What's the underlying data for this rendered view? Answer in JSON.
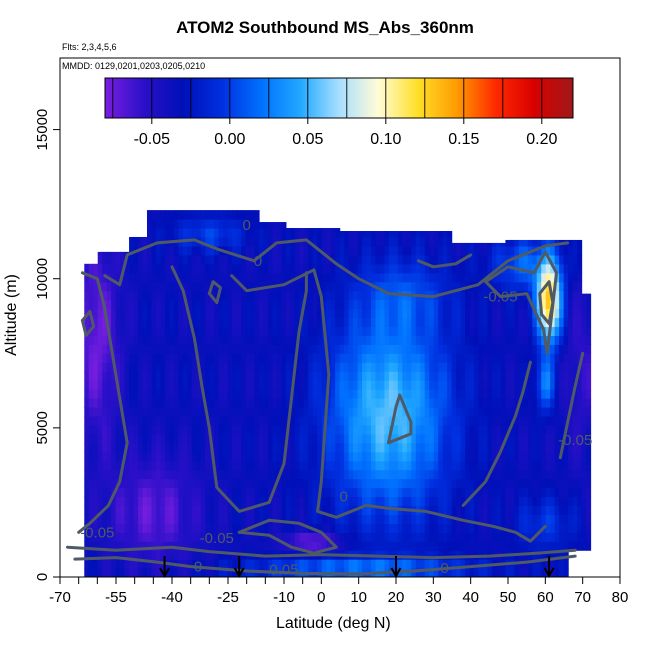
{
  "chart_data": {
    "type": "heatmap",
    "title": "ATOM2 Southbound MS_Abs_360nm",
    "notes": [
      "Flts: 2,3,4,5,6",
      "MMDD: 0129,0201,0203,0205,0210"
    ],
    "xlabel": "Latitude (deg N)",
    "ylabel": "Altitude (m)",
    "xlim": [
      -70,
      80
    ],
    "ylim": [
      0,
      17400
    ],
    "x_ticks": [
      -70,
      -55,
      -40,
      -25,
      -10,
      0,
      10,
      20,
      30,
      40,
      50,
      60,
      70,
      80
    ],
    "x_tick_labels": [
      "-70",
      "-55",
      "-40",
      "-25",
      "-10",
      "0",
      "10",
      "20",
      "30",
      "40",
      "50",
      "60",
      "70",
      "80"
    ],
    "x_minor_ticks": [
      -65,
      -60,
      -50,
      -45,
      -35,
      -30,
      -20,
      -15,
      -5
    ],
    "y_ticks": [
      0,
      5000,
      10000,
      15000
    ],
    "y_tick_labels": [
      "0",
      "5000",
      "10000",
      "15000"
    ],
    "colorbar": {
      "range": [
        -0.08,
        0.22
      ],
      "ticks": [
        -0.05,
        0.0,
        0.05,
        0.1,
        0.15,
        0.2
      ],
      "tick_labels": [
        "-0.05",
        "0.00",
        "0.05",
        "0.10",
        "0.15",
        "0.20"
      ],
      "colors": [
        "#7a1ee0",
        "#2a10c8",
        "#0010b8",
        "#0030e0",
        "#0070ff",
        "#20a8ff",
        "#a8deff",
        "#fffcd8",
        "#ffe02a",
        "#ff9d00",
        "#ff2a00",
        "#d80000",
        "#a01818"
      ]
    },
    "profile_markers_lat": [
      -42,
      -22,
      20,
      61
    ],
    "contour_labels": [
      {
        "text": "0",
        "lat": -20,
        "alt": 11800
      },
      {
        "text": "0",
        "lat": -17,
        "alt": 10600
      },
      {
        "text": "-0.05",
        "lat": 48,
        "alt": 9400
      },
      {
        "text": "-0.05",
        "lat": 68,
        "alt": 4600
      },
      {
        "text": "-0.05",
        "lat": -60,
        "alt": 1500
      },
      {
        "text": "-0.05",
        "lat": -28,
        "alt": 1300
      },
      {
        "text": "0",
        "lat": 6,
        "alt": 2700
      },
      {
        "text": "0",
        "lat": -33,
        "alt": 350
      },
      {
        "text": "0.05",
        "lat": -10,
        "alt": 250
      },
      {
        "text": "0",
        "lat": 33,
        "alt": 300
      }
    ],
    "grid": false,
    "legend": "colorbar inside plot, top"
  }
}
